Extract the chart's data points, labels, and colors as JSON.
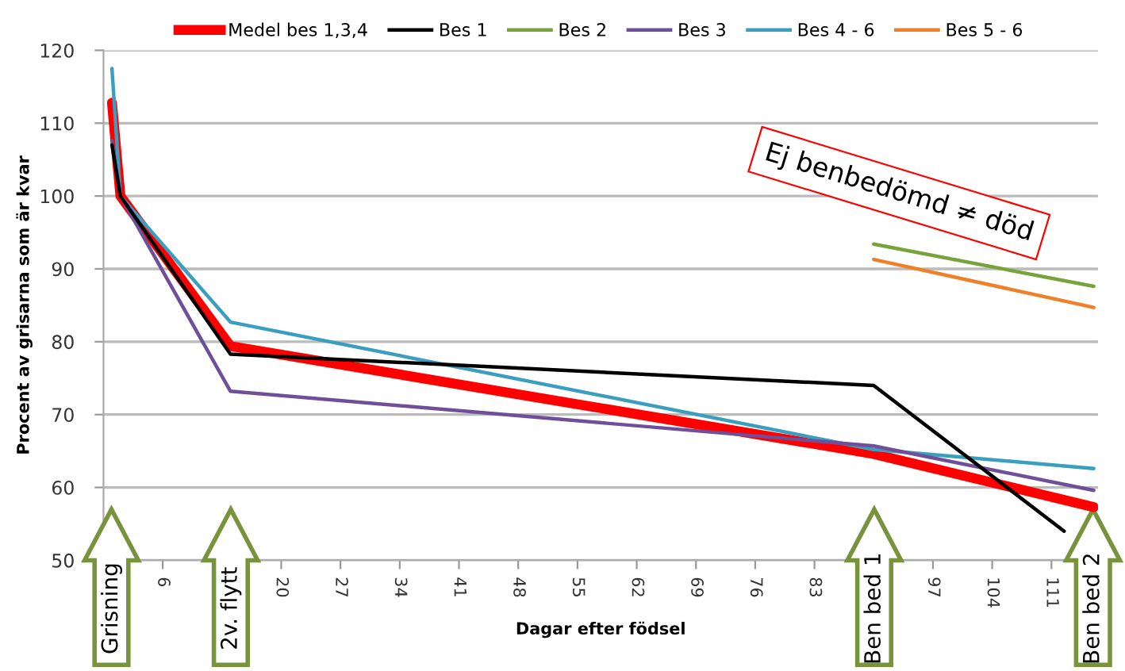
{
  "chart_data": {
    "type": "line",
    "xlabel": "Dagar efter födsel",
    "ylabel": "Procent av grisarna som är kvar",
    "xlim": [
      -1,
      116.5
    ],
    "ylim": [
      50,
      120
    ],
    "xticks": [
      6,
      {
        "value": 13,
        "label": null
      },
      20,
      27,
      34,
      41,
      48,
      55,
      62,
      69,
      76,
      83,
      {
        "value": 90,
        "label": null
      },
      97,
      104,
      111
    ],
    "yticks": [
      50,
      60,
      70,
      80,
      90,
      100,
      110,
      120
    ],
    "grid": "y",
    "legend": "top",
    "marker": "none",
    "line_style": "solid",
    "series": [
      {
        "name": "Medel bes 1,3,4",
        "color": "#ff0000",
        "x": [
          0,
          1,
          14,
          90,
          116
        ],
        "values": [
          112.8,
          100,
          79.4,
          64.6,
          57.3
        ]
      },
      {
        "name": "Bes 1",
        "color": "#000000",
        "x": [
          0,
          1,
          14,
          90,
          112.5
        ],
        "values": [
          107,
          100,
          78.3,
          74,
          54
        ]
      },
      {
        "name": "Bes 2",
        "color": "#77a33a",
        "x": [
          90,
          116
        ],
        "values": [
          93.4,
          87.6
        ]
      },
      {
        "name": "Bes 3",
        "color": "#6f4f9a",
        "x": [
          0,
          1,
          14,
          90,
          116
        ],
        "values": [
          107.6,
          100,
          73.2,
          65.7,
          59.6
        ]
      },
      {
        "name": "Bes 4 - 6",
        "color": "#3a9fbf",
        "x": [
          0,
          1,
          14,
          90,
          116
        ],
        "values": [
          117.5,
          100,
          82.7,
          65.2,
          62.6
        ]
      },
      {
        "name": "Bes 5 - 6",
        "color": "#f07f2a",
        "x": [
          90,
          116
        ],
        "values": [
          91.3,
          84.7
        ]
      }
    ],
    "annotations": [
      "Ej benbedömd ≠ död",
      "Grisning",
      "2v. flytt",
      "Ben bed 1",
      "Ben bed 2"
    ]
  }
}
